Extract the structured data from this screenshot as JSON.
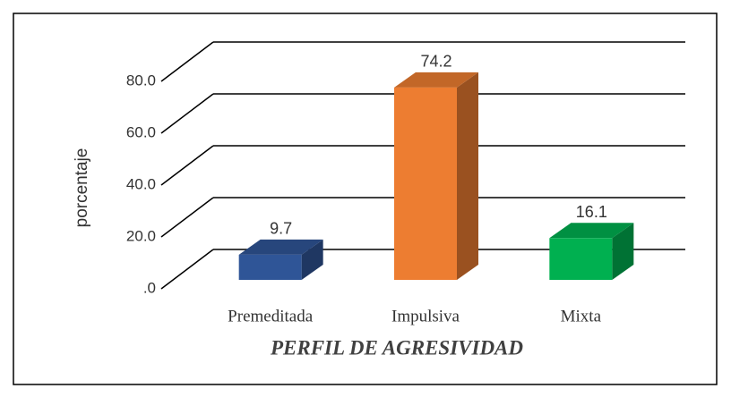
{
  "chart_data": {
    "type": "bar3d",
    "categories": [
      "Premeditada",
      "Impulsiva",
      "Mixta"
    ],
    "values": [
      9.7,
      74.2,
      16.1
    ],
    "colors": [
      "#2f5597",
      "#ed7d31",
      "#00b050"
    ],
    "ylabel": "porcentaje",
    "xlabel": "PERFIL DE AGRESIVIDAD",
    "ylim": [
      0,
      80
    ],
    "yticks": [
      {
        "value": 0,
        "label": ".0"
      },
      {
        "value": 20,
        "label": "20.0"
      },
      {
        "value": 40,
        "label": "40.0"
      },
      {
        "value": 60,
        "label": "60.0"
      },
      {
        "value": 80,
        "label": "80.0"
      }
    ],
    "grid": true
  }
}
